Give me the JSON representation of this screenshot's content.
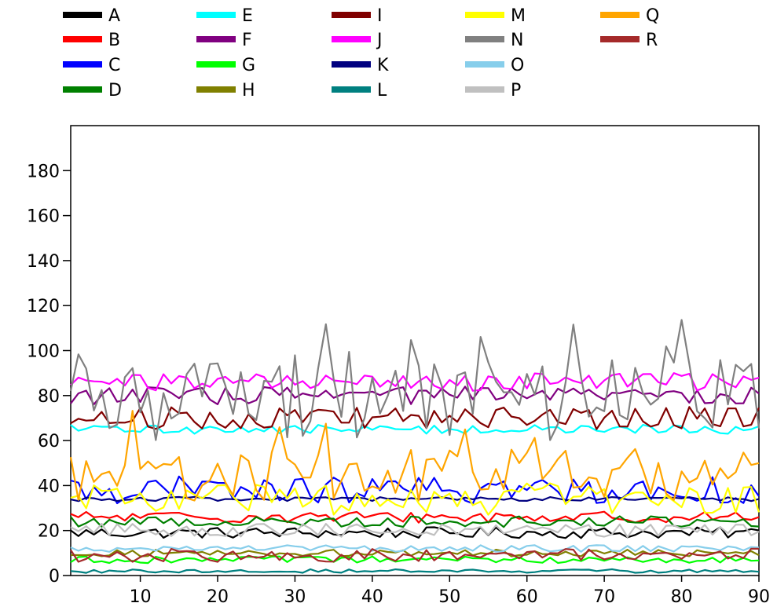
{
  "chart_data": {
    "type": "line",
    "title": "",
    "xlabel": "",
    "ylabel": "",
    "xlim": [
      1,
      90
    ],
    "ylim": [
      0,
      200
    ],
    "xticks": [
      10,
      20,
      30,
      40,
      50,
      60,
      70,
      80,
      90
    ],
    "yticks": [
      0,
      20,
      40,
      60,
      80,
      100,
      120,
      140,
      160,
      180
    ],
    "grid": false,
    "legend_placement": "top",
    "series": [
      {
        "name": "A",
        "color": "#000000",
        "base": 19,
        "amp": 2.5
      },
      {
        "name": "B",
        "color": "#ff0000",
        "base": 26,
        "amp": 2.5
      },
      {
        "name": "C",
        "color": "#0000ff",
        "base": 38,
        "amp": 6
      },
      {
        "name": "D",
        "color": "#008000",
        "base": 24,
        "amp": 2.5
      },
      {
        "name": "E",
        "color": "#00ffff",
        "base": 65,
        "amp": 2
      },
      {
        "name": "F",
        "color": "#800080",
        "base": 80,
        "amp": 4
      },
      {
        "name": "G",
        "color": "#00ff00",
        "base": 7,
        "amp": 1.5
      },
      {
        "name": "H",
        "color": "#808000",
        "base": 10,
        "amp": 1.5
      },
      {
        "name": "I",
        "color": "#800000",
        "base": 70,
        "amp": 5
      },
      {
        "name": "J",
        "color": "#ff00ff",
        "base": 86,
        "amp": 4
      },
      {
        "name": "K",
        "color": "#000080",
        "base": 34,
        "amp": 1
      },
      {
        "name": "L",
        "color": "#008080",
        "base": 2,
        "amp": 0.8
      },
      {
        "name": "M",
        "color": "#ffff00",
        "base": 34,
        "amp": 7
      },
      {
        "name": "N",
        "color": "#808080",
        "base": 78,
        "amp": 18
      },
      {
        "name": "O",
        "color": "#87ceeb",
        "base": 12,
        "amp": 1.5
      },
      {
        "name": "P",
        "color": "#c0c0c0",
        "base": 20,
        "amp": 3
      },
      {
        "name": "Q",
        "color": "#ffa500",
        "base": 45,
        "amp": 12
      },
      {
        "name": "R",
        "color": "#a52a2a",
        "base": 9,
        "amp": 3
      }
    ]
  }
}
